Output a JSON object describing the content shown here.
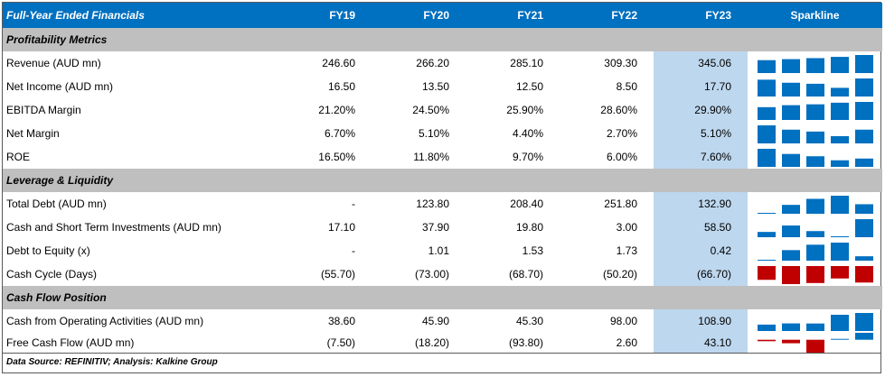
{
  "header": {
    "title": "Full-Year Ended Financials",
    "years": [
      "FY19",
      "FY20",
      "FY21",
      "FY22",
      "FY23"
    ],
    "sparkline_label": "Sparkline"
  },
  "colors": {
    "header_bg": "#0070c0",
    "section_bg": "#bfbfbf",
    "highlight_bg": "#bdd7ee",
    "bar_positive": "#0070c0",
    "bar_negative": "#c00000"
  },
  "sections": [
    {
      "title": "Profitability Metrics",
      "rows": [
        {
          "label": "Revenue (AUD mn)",
          "values": [
            "246.60",
            "266.20",
            "285.10",
            "309.30",
            "345.06"
          ],
          "spark": [
            246.6,
            266.2,
            285.1,
            309.3,
            345.06
          ]
        },
        {
          "label": "Net Income (AUD mn)",
          "values": [
            "16.50",
            "13.50",
            "12.50",
            "8.50",
            "17.70"
          ],
          "spark": [
            16.5,
            13.5,
            12.5,
            8.5,
            17.7
          ]
        },
        {
          "label": "EBITDA Margin",
          "values": [
            "21.20%",
            "24.50%",
            "25.90%",
            "28.60%",
            "29.90%"
          ],
          "spark": [
            21.2,
            24.5,
            25.9,
            28.6,
            29.9
          ]
        },
        {
          "label": "Net Margin",
          "values": [
            "6.70%",
            "5.10%",
            "4.40%",
            "2.70%",
            "5.10%"
          ],
          "spark": [
            6.7,
            5.1,
            4.4,
            2.7,
            5.1
          ]
        },
        {
          "label": "ROE",
          "values": [
            "16.50%",
            "11.80%",
            "9.70%",
            "6.00%",
            "7.60%"
          ],
          "spark": [
            16.5,
            11.8,
            9.7,
            6.0,
            7.6
          ]
        }
      ]
    },
    {
      "title": "Leverage & Liquidity",
      "rows": [
        {
          "label": "Total Debt (AUD mn)",
          "values": [
            "-",
            "123.80",
            "208.40",
            "251.80",
            "132.90"
          ],
          "spark": [
            0,
            123.8,
            208.4,
            251.8,
            132.9
          ]
        },
        {
          "label": "Cash and Short Term Investments (AUD mn)",
          "values": [
            "17.10",
            "37.90",
            "19.80",
            "3.00",
            "58.50"
          ],
          "spark": [
            17.1,
            37.9,
            19.8,
            3.0,
            58.5
          ]
        },
        {
          "label": "Debt to Equity (x)",
          "values": [
            "-",
            "1.01",
            "1.53",
            "1.73",
            "0.42"
          ],
          "spark": [
            0,
            1.01,
            1.53,
            1.73,
            0.42
          ]
        },
        {
          "label": "Cash Cycle (Days)",
          "values": [
            "(55.70)",
            "(73.00)",
            "(68.70)",
            "(50.20)",
            "(66.70)"
          ],
          "spark": [
            -55.7,
            -73.0,
            -68.7,
            -50.2,
            -66.7
          ]
        }
      ]
    },
    {
      "title": "Cash Flow Position",
      "rows": [
        {
          "label": "Cash from Operating Activities (AUD mn)",
          "values": [
            "38.60",
            "45.90",
            "45.30",
            "98.00",
            "108.90"
          ],
          "spark": [
            38.6,
            45.9,
            45.3,
            98.0,
            108.9
          ]
        },
        {
          "label": "Free Cash Flow (AUD mn)",
          "values": [
            "(7.50)",
            "(18.20)",
            "(93.80)",
            "2.60",
            "43.10"
          ],
          "spark": [
            -7.5,
            -18.2,
            -93.8,
            2.6,
            43.1
          ]
        }
      ]
    }
  ],
  "footer": "Data Source: REFINITIV; Analysis: Kalkine Group"
}
